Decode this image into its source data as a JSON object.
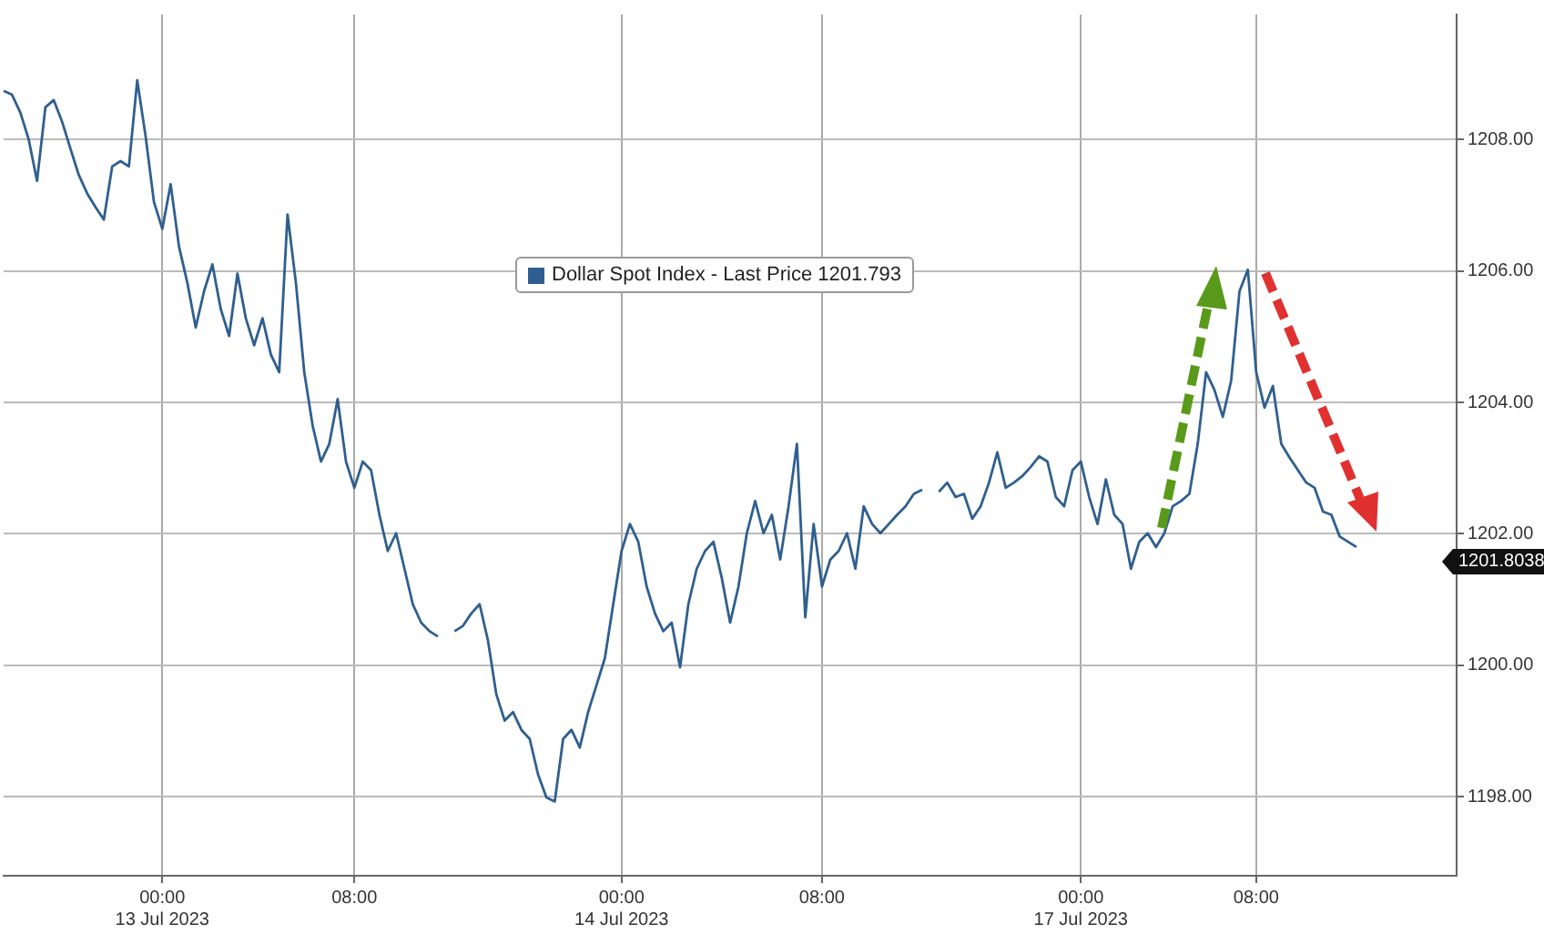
{
  "chart_data": {
    "type": "line",
    "categories": [
      null,
      null,
      null,
      null,
      null,
      null,
      null,
      null,
      null,
      null,
      null,
      null,
      null,
      null,
      null,
      null,
      null,
      null,
      null,
      "00:00\n13 Jul 2023",
      null,
      null,
      null,
      null,
      null,
      null,
      null,
      null,
      null,
      null,
      null,
      null,
      null,
      null,
      null,
      null,
      null,
      null,
      null,
      null,
      null,
      null,
      "08:00",
      null,
      null,
      null,
      null,
      null,
      null,
      null,
      null,
      null,
      null,
      null,
      null,
      null,
      null,
      null,
      null,
      null,
      null,
      null,
      null,
      null,
      null,
      null,
      null,
      null,
      null,
      null,
      null,
      null,
      null,
      null,
      "00:00\n14 Jul 2023",
      null,
      null,
      null,
      null,
      null,
      null,
      null,
      null,
      null,
      null,
      null,
      null,
      null,
      null,
      null,
      null,
      null,
      null,
      null,
      null,
      null,
      null,
      null,
      "08:00",
      null,
      null,
      null,
      null,
      null,
      null,
      null,
      null,
      null,
      null,
      null,
      null,
      null,
      null,
      null,
      null,
      null,
      null,
      null,
      null,
      null,
      null,
      null,
      null,
      null,
      null,
      null,
      null,
      null,
      null,
      "00:00\n17 Jul 2023",
      null,
      null,
      null,
      null,
      null,
      null,
      null,
      null,
      null,
      null,
      null,
      null,
      null,
      null,
      null,
      null,
      null,
      null,
      null,
      null,
      "08:00",
      null,
      null,
      null,
      null,
      null,
      null,
      null,
      null,
      null,
      null,
      null,
      null,
      null,
      null,
      null,
      null,
      null,
      null,
      null,
      null,
      null,
      null,
      null,
      null
    ],
    "series": [
      {
        "name": "Dollar Spot Index - Last Price 1201.793",
        "color": "#2f5f8f",
        "values": [
          1208.74,
          1208.68,
          1208.41,
          1208.0,
          1207.37,
          1208.49,
          1208.6,
          1208.27,
          1207.86,
          1207.46,
          1207.18,
          1206.97,
          1206.78,
          1207.59,
          1207.67,
          1207.59,
          1208.9,
          1208.05,
          1207.05,
          1206.64,
          1207.32,
          1206.37,
          1205.82,
          1205.14,
          1205.69,
          1206.1,
          1205.42,
          1205.01,
          1205.96,
          1205.28,
          1204.87,
          1205.28,
          1204.73,
          1204.46,
          1206.86,
          1205.82,
          1204.46,
          1203.65,
          1203.1,
          1203.37,
          1204.05,
          1203.1,
          1202.7,
          1203.1,
          1202.97,
          1202.29,
          1201.74,
          1202.01,
          1201.47,
          1200.93,
          1200.65,
          1200.52,
          1200.44,
          null,
          1200.52,
          1200.6,
          1200.79,
          1200.93,
          1200.38,
          1199.56,
          1199.16,
          1199.29,
          1199.02,
          1198.88,
          1198.34,
          1197.99,
          1197.93,
          1198.88,
          1199.02,
          1198.75,
          1199.29,
          1199.7,
          1200.11,
          1200.93,
          1201.74,
          1202.15,
          1201.88,
          1201.2,
          1200.79,
          1200.52,
          1200.65,
          1199.97,
          1200.93,
          1201.47,
          1201.74,
          1201.88,
          1201.33,
          1200.65,
          1201.2,
          1202.01,
          1202.5,
          1202.01,
          1202.29,
          1201.61,
          1202.42,
          1203.37,
          1200.73,
          1202.15,
          1201.2,
          1201.61,
          1201.74,
          1202.01,
          1201.47,
          1202.42,
          1202.15,
          1202.01,
          1202.15,
          1202.29,
          1202.42,
          1202.61,
          1202.67,
          null,
          1202.64,
          1202.78,
          1202.56,
          1202.61,
          1202.23,
          1202.42,
          1202.78,
          1203.24,
          1202.7,
          1202.78,
          1202.88,
          1203.02,
          1203.18,
          1203.1,
          1202.56,
          1202.42,
          1202.97,
          1203.1,
          1202.56,
          1202.15,
          1202.83,
          1202.29,
          1202.15,
          1201.47,
          1201.88,
          1202.01,
          1201.8,
          1202.01,
          1202.42,
          1202.5,
          1202.61,
          1203.37,
          1204.46,
          1204.19,
          1203.78,
          1204.33,
          1205.69,
          1206.02,
          1204.46,
          1203.92,
          1204.25,
          1203.37,
          1203.16,
          1202.97,
          1202.78,
          1202.7,
          1202.34,
          1202.29,
          1201.96,
          1201.88,
          1201.8,
          null,
          null,
          null,
          null,
          null,
          null,
          null,
          null,
          null,
          null,
          null,
          null
        ]
      }
    ],
    "ylim": [
      1196.8,
      1209.9
    ],
    "yticks": [
      {
        "value": 1198,
        "label": "1198.00"
      },
      {
        "value": 1200,
        "label": "1200.00"
      },
      {
        "value": 1202,
        "label": "1202.00"
      },
      {
        "value": 1204,
        "label": "1204.00"
      },
      {
        "value": 1206,
        "label": "1206.00"
      },
      {
        "value": 1208,
        "label": "1208.00"
      }
    ],
    "annotations": [
      "1201.8038"
    ],
    "grid": true,
    "legend": "top",
    "marker": "none",
    "line_style": "solid"
  }
}
